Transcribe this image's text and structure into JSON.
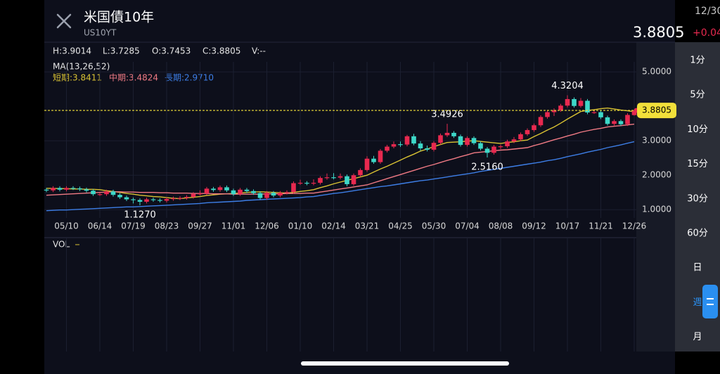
{
  "header": {
    "title": "米国債10年",
    "symbol": "US10YT",
    "date": "12/30",
    "price": "3.8805",
    "change": "+0.04"
  },
  "stats": [
    "H:3.9014",
    "L:3.7285",
    "O:3.7453",
    "C:3.8805",
    "V:--"
  ],
  "ma_label": "MA(13,26,52)",
  "volume_label": "VOL",
  "periods": [
    "1分",
    "5分",
    "10分",
    "15分",
    "30分",
    "60分",
    "日",
    "週",
    "月"
  ],
  "chart_data": {
    "type": "candlestick",
    "categories": [
      null,
      null,
      null,
      "05/10",
      null,
      null,
      null,
      null,
      "06/14",
      null,
      null,
      null,
      null,
      "07/19",
      null,
      null,
      null,
      null,
      "08/23",
      null,
      null,
      null,
      null,
      "09/27",
      null,
      null,
      null,
      null,
      "11/01",
      null,
      null,
      null,
      null,
      "12/06",
      null,
      null,
      null,
      null,
      "01/10",
      null,
      null,
      null,
      null,
      "02/14",
      null,
      null,
      null,
      null,
      "03/21",
      null,
      null,
      null,
      null,
      "04/25",
      null,
      null,
      null,
      null,
      "05/30",
      null,
      null,
      null,
      null,
      "07/04",
      null,
      null,
      null,
      null,
      "08/08",
      null,
      null,
      null,
      null,
      "09/12",
      null,
      null,
      null,
      null,
      "10/17",
      null,
      null,
      null,
      null,
      "11/21",
      null,
      null,
      null,
      null,
      "12/26"
    ],
    "open": [
      1.58,
      1.56,
      1.63,
      1.58,
      1.63,
      1.62,
      1.59,
      1.55,
      1.45,
      1.45,
      1.53,
      1.43,
      1.36,
      1.3,
      1.28,
      1.23,
      1.3,
      1.28,
      1.26,
      1.31,
      1.33,
      1.34,
      1.37,
      1.46,
      1.47,
      1.61,
      1.57,
      1.65,
      1.56,
      1.45,
      1.58,
      1.54,
      1.48,
      1.34,
      1.49,
      1.41,
      1.49,
      1.51,
      1.77,
      1.78,
      1.76,
      1.78,
      1.92,
      1.94,
      1.93,
      1.97,
      1.74,
      2.0,
      2.15,
      2.48,
      2.38,
      2.71,
      2.83,
      2.9,
      2.89,
      3.13,
      2.92,
      2.78,
      2.74,
      2.94,
      3.16,
      3.23,
      3.13,
      2.88,
      3.08,
      2.93,
      2.77,
      2.65,
      2.83,
      2.84,
      2.98,
      3.04,
      3.19,
      3.31,
      3.45,
      3.69,
      3.83,
      3.89,
      4.02,
      4.21,
      4.01,
      4.16,
      3.82,
      3.83,
      3.68,
      3.49,
      3.57,
      3.48,
      3.7453
    ],
    "high": [
      1.63,
      1.68,
      1.68,
      1.68,
      1.68,
      1.67,
      1.64,
      1.6,
      1.5,
      1.58,
      1.58,
      1.48,
      1.41,
      1.35,
      1.33,
      1.35,
      1.35,
      1.33,
      1.36,
      1.38,
      1.39,
      1.42,
      1.51,
      1.56,
      1.66,
      1.66,
      1.7,
      1.7,
      1.61,
      1.63,
      1.63,
      1.59,
      1.53,
      1.54,
      1.54,
      1.54,
      1.56,
      1.82,
      1.87,
      1.83,
      1.88,
      1.97,
      2.05,
      2.06,
      2.05,
      2.02,
      2.05,
      2.2,
      2.55,
      2.56,
      2.76,
      2.88,
      2.98,
      2.98,
      3.17,
      3.2,
      2.99,
      2.86,
      2.99,
      3.21,
      3.4926,
      3.28,
      3.18,
      3.13,
      3.13,
      2.98,
      2.82,
      2.88,
      2.89,
      3.03,
      3.11,
      3.24,
      3.36,
      3.5,
      3.74,
      3.88,
      3.94,
      4.07,
      4.3204,
      4.26,
      4.24,
      4.21,
      3.88,
      3.88,
      3.73,
      3.62,
      3.62,
      3.8,
      3.9014
    ],
    "low": [
      1.51,
      1.51,
      1.53,
      1.53,
      1.57,
      1.54,
      1.5,
      1.4,
      1.4,
      1.4,
      1.38,
      1.31,
      1.25,
      1.18,
      1.127,
      1.18,
      1.23,
      1.21,
      1.21,
      1.26,
      1.28,
      1.29,
      1.32,
      1.41,
      1.42,
      1.52,
      1.52,
      1.51,
      1.4,
      1.4,
      1.49,
      1.43,
      1.29,
      1.29,
      1.36,
      1.36,
      1.44,
      1.46,
      1.72,
      1.71,
      1.71,
      1.73,
      1.87,
      1.88,
      1.88,
      1.68,
      1.69,
      1.95,
      2.1,
      2.33,
      2.33,
      2.66,
      2.78,
      2.82,
      2.84,
      2.87,
      2.71,
      2.69,
      2.69,
      2.89,
      3.11,
      3.08,
      2.83,
      2.83,
      2.88,
      2.72,
      2.516,
      2.6,
      2.76,
      2.79,
      2.93,
      2.99,
      3.14,
      3.26,
      3.4,
      3.64,
      3.72,
      3.84,
      3.97,
      3.96,
      3.96,
      3.77,
      3.78,
      3.63,
      3.44,
      3.44,
      3.43,
      3.43,
      3.7285
    ],
    "close": [
      1.56,
      1.63,
      1.58,
      1.63,
      1.62,
      1.59,
      1.55,
      1.45,
      1.45,
      1.53,
      1.43,
      1.36,
      1.3,
      1.28,
      1.23,
      1.3,
      1.28,
      1.26,
      1.31,
      1.33,
      1.34,
      1.37,
      1.46,
      1.47,
      1.61,
      1.57,
      1.65,
      1.56,
      1.45,
      1.58,
      1.54,
      1.48,
      1.34,
      1.49,
      1.41,
      1.49,
      1.51,
      1.77,
      1.78,
      1.76,
      1.78,
      1.92,
      1.94,
      1.93,
      1.97,
      1.74,
      2.0,
      2.15,
      2.48,
      2.38,
      2.71,
      2.83,
      2.9,
      2.89,
      3.13,
      2.92,
      2.78,
      2.74,
      2.94,
      3.16,
      3.23,
      3.13,
      2.88,
      3.08,
      2.93,
      2.77,
      2.65,
      2.83,
      2.84,
      2.98,
      3.04,
      3.19,
      3.31,
      3.45,
      3.69,
      3.83,
      3.89,
      4.02,
      4.21,
      4.01,
      4.16,
      3.82,
      3.83,
      3.68,
      3.49,
      3.57,
      3.48,
      3.75,
      3.8805
    ],
    "high_labels": [
      null,
      null,
      null,
      null,
      null,
      null,
      null,
      null,
      null,
      null,
      null,
      null,
      null,
      null,
      null,
      null,
      null,
      null,
      null,
      null,
      null,
      null,
      null,
      null,
      null,
      null,
      null,
      null,
      null,
      null,
      null,
      null,
      null,
      null,
      null,
      null,
      null,
      null,
      null,
      null,
      null,
      null,
      null,
      null,
      null,
      null,
      null,
      null,
      null,
      null,
      null,
      null,
      null,
      null,
      null,
      null,
      null,
      null,
      null,
      null,
      "3.4926",
      null,
      null,
      null,
      null,
      null,
      null,
      null,
      null,
      null,
      null,
      null,
      null,
      null,
      null,
      null,
      null,
      null,
      "4.3204",
      null,
      null,
      null,
      null,
      null,
      null,
      null,
      null,
      null,
      null
    ],
    "low_labels": [
      null,
      null,
      null,
      null,
      null,
      null,
      null,
      null,
      null,
      null,
      null,
      null,
      null,
      null,
      "1.1270",
      null,
      null,
      null,
      null,
      null,
      null,
      null,
      null,
      null,
      null,
      null,
      null,
      null,
      null,
      null,
      null,
      null,
      null,
      null,
      null,
      null,
      null,
      null,
      null,
      null,
      null,
      null,
      null,
      null,
      null,
      null,
      null,
      null,
      null,
      null,
      null,
      null,
      null,
      null,
      null,
      null,
      null,
      null,
      null,
      null,
      null,
      null,
      null,
      null,
      null,
      null,
      "2.5160",
      null,
      null,
      null,
      null,
      null,
      null,
      null,
      null,
      null,
      null,
      null,
      null,
      null,
      null,
      null,
      null,
      null,
      null,
      null,
      null,
      null,
      null,
      null,
      null
    ],
    "up_color": "#e8294f",
    "down_color": "#3dd8c8",
    "series": [
      {
        "name": "短期:3.8411",
        "color": "#d9c233",
        "values": [
          1.62,
          1.62,
          1.61,
          1.61,
          1.6,
          1.6,
          1.59,
          1.59,
          1.58,
          1.55,
          1.53,
          1.5,
          1.47,
          1.45,
          1.42,
          1.4,
          1.38,
          1.37,
          1.35,
          1.33,
          1.32,
          1.34,
          1.36,
          1.38,
          1.41,
          1.43,
          1.45,
          1.46,
          1.47,
          1.48,
          1.5,
          1.51,
          1.52,
          1.51,
          1.5,
          1.49,
          1.48,
          1.5,
          1.53,
          1.55,
          1.58,
          1.64,
          1.69,
          1.75,
          1.8,
          1.85,
          1.9,
          1.95,
          2.0,
          2.09,
          2.18,
          2.26,
          2.35,
          2.44,
          2.53,
          2.61,
          2.7,
          2.76,
          2.83,
          2.89,
          2.95,
          2.96,
          2.97,
          2.99,
          3.0,
          2.98,
          2.96,
          2.94,
          2.92,
          2.95,
          2.97,
          3.0,
          3.02,
          3.12,
          3.21,
          3.31,
          3.4,
          3.51,
          3.63,
          3.74,
          3.85,
          3.88,
          3.9,
          3.93,
          3.95,
          3.92,
          3.89,
          3.87,
          3.8411
        ]
      },
      {
        "name": "中期:3.4824",
        "color": "#f07a84",
        "values": [
          1.42,
          1.43,
          1.44,
          1.45,
          1.46,
          1.47,
          1.48,
          1.49,
          1.5,
          1.51,
          1.52,
          1.52,
          1.51,
          1.51,
          1.5,
          1.5,
          1.5,
          1.49,
          1.49,
          1.48,
          1.48,
          1.48,
          1.47,
          1.47,
          1.47,
          1.46,
          1.46,
          1.46,
          1.45,
          1.45,
          1.45,
          1.45,
          1.45,
          1.46,
          1.46,
          1.46,
          1.47,
          1.47,
          1.47,
          1.48,
          1.48,
          1.51,
          1.54,
          1.57,
          1.6,
          1.63,
          1.66,
          1.69,
          1.72,
          1.78,
          1.84,
          1.9,
          1.96,
          2.02,
          2.08,
          2.14,
          2.2,
          2.26,
          2.31,
          2.37,
          2.43,
          2.48,
          2.54,
          2.59,
          2.65,
          2.67,
          2.69,
          2.71,
          2.73,
          2.74,
          2.76,
          2.78,
          2.8,
          2.86,
          2.91,
          2.97,
          3.03,
          3.08,
          3.14,
          3.19,
          3.25,
          3.29,
          3.33,
          3.36,
          3.4,
          3.42,
          3.44,
          3.46,
          3.4824
        ]
      },
      {
        "name": "長期:2.9710",
        "color": "#3d7ee6",
        "values": [
          0.97,
          0.98,
          0.99,
          0.99,
          1.0,
          1.01,
          1.02,
          1.03,
          1.04,
          1.05,
          1.06,
          1.07,
          1.08,
          1.08,
          1.09,
          1.1,
          1.11,
          1.12,
          1.13,
          1.14,
          1.15,
          1.16,
          1.17,
          1.18,
          1.2,
          1.21,
          1.22,
          1.23,
          1.24,
          1.25,
          1.27,
          1.28,
          1.29,
          1.3,
          1.31,
          1.32,
          1.33,
          1.34,
          1.35,
          1.37,
          1.38,
          1.41,
          1.44,
          1.47,
          1.49,
          1.52,
          1.55,
          1.58,
          1.61,
          1.64,
          1.67,
          1.69,
          1.72,
          1.75,
          1.78,
          1.81,
          1.84,
          1.86,
          1.89,
          1.92,
          1.95,
          1.98,
          2.01,
          2.04,
          2.07,
          2.11,
          2.14,
          2.17,
          2.2,
          2.23,
          2.26,
          2.29,
          2.32,
          2.35,
          2.38,
          2.42,
          2.45,
          2.49,
          2.54,
          2.58,
          2.62,
          2.67,
          2.71,
          2.75,
          2.8,
          2.84,
          2.88,
          2.93,
          2.971
        ]
      }
    ],
    "ylim": [
      0.76,
      5.29
    ],
    "yticks": [
      {
        "value": 1,
        "label": "1.0000"
      },
      {
        "value": 2,
        "label": "2.0000"
      },
      {
        "value": 3,
        "label": "3.0000"
      },
      {
        "value": 5,
        "label": "5.0000"
      }
    ],
    "grid": true,
    "last_price_color": "#f2e03a"
  }
}
